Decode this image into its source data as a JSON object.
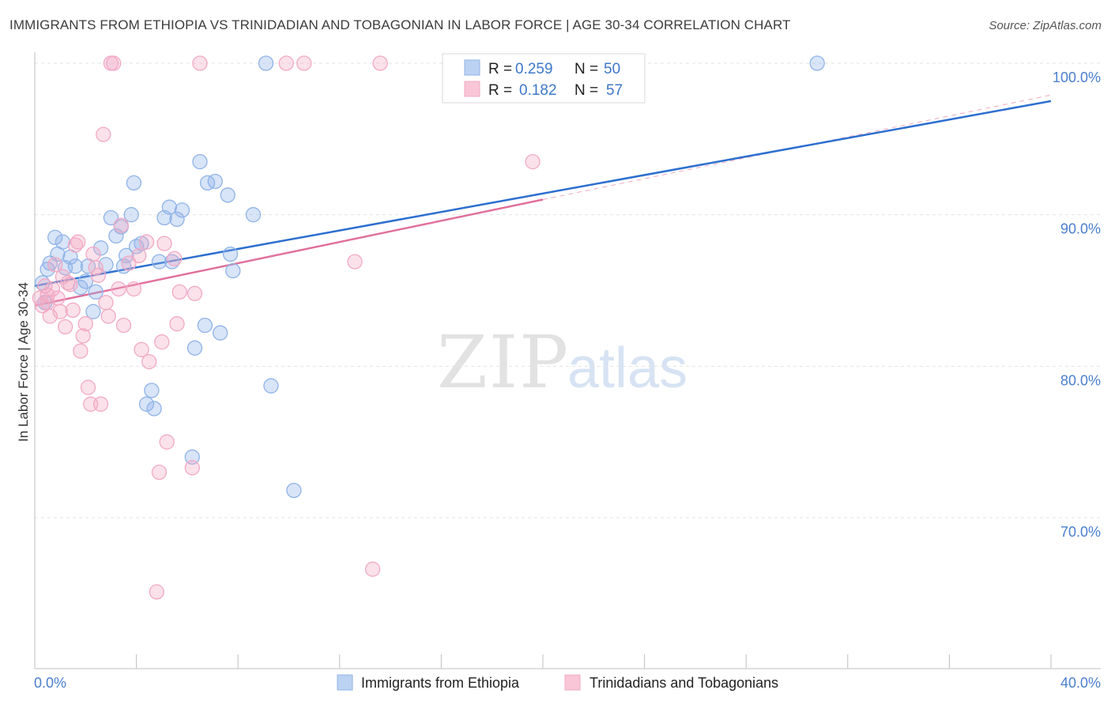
{
  "title": "IMMIGRANTS FROM ETHIOPIA VS TRINIDADIAN AND TOBAGONIAN IN LABOR FORCE | AGE 30-34 CORRELATION CHART",
  "source": "Source: ZipAtlas.com",
  "watermark": {
    "zip": "ZIP",
    "atlas": "atlas"
  },
  "legend_top": {
    "r_label": "R = ",
    "n_label": "N = ",
    "entries": [
      {
        "r": "0.259",
        "n": "50"
      },
      {
        "r": "0.182",
        "n": "57"
      }
    ]
  },
  "chart_data": {
    "type": "scatter",
    "title": "IMMIGRANTS FROM ETHIOPIA VS TRINIDADIAN AND TOBAGONIAN IN LABOR FORCE | AGE 30-34 CORRELATION CHART",
    "xlabel": "",
    "ylabel": "In Labor Force | Age 30-34",
    "xlim": [
      0,
      40
    ],
    "ylim": [
      60.5,
      102
    ],
    "x_tick_labels": [
      "0.0%",
      "40.0%"
    ],
    "y_ticks": [
      70,
      80,
      90,
      100
    ],
    "y_tick_labels": [
      "70.0%",
      "80.0%",
      "90.0%",
      "100.0%"
    ],
    "grid": true,
    "legend_placement": "bottom-center",
    "series": [
      {
        "name": "Immigrants from Ethiopia",
        "color": "#8fb3e8",
        "line_color": "#2c6fcf",
        "trend": {
          "x": [
            0,
            40
          ],
          "y": [
            85.3,
            97.5
          ]
        },
        "points": [
          [
            0.3,
            85.5
          ],
          [
            0.4,
            84.2
          ],
          [
            0.5,
            86.4
          ],
          [
            0.6,
            86.8
          ],
          [
            0.8,
            88.5
          ],
          [
            0.9,
            87.4
          ],
          [
            1.1,
            88.2
          ],
          [
            1.2,
            86.5
          ],
          [
            1.4,
            87.2
          ],
          [
            1.6,
            86.6
          ],
          [
            1.8,
            85.2
          ],
          [
            2.0,
            85.6
          ],
          [
            2.1,
            86.6
          ],
          [
            2.3,
            83.6
          ],
          [
            2.4,
            84.9
          ],
          [
            2.6,
            87.8
          ],
          [
            2.8,
            86.7
          ],
          [
            3.0,
            89.8
          ],
          [
            3.2,
            88.6
          ],
          [
            3.4,
            89.2
          ],
          [
            3.5,
            86.6
          ],
          [
            3.6,
            87.3
          ],
          [
            3.8,
            90.0
          ],
          [
            3.9,
            92.1
          ],
          [
            4.0,
            87.9
          ],
          [
            4.2,
            88.1
          ],
          [
            4.4,
            77.5
          ],
          [
            4.6,
            78.4
          ],
          [
            4.7,
            77.2
          ],
          [
            4.9,
            86.9
          ],
          [
            5.1,
            89.8
          ],
          [
            5.3,
            90.5
          ],
          [
            5.4,
            86.9
          ],
          [
            5.6,
            89.7
          ],
          [
            5.8,
            90.3
          ],
          [
            6.2,
            74.0
          ],
          [
            6.3,
            81.2
          ],
          [
            6.5,
            93.5
          ],
          [
            6.7,
            82.7
          ],
          [
            6.8,
            92.1
          ],
          [
            7.1,
            92.2
          ],
          [
            7.3,
            82.2
          ],
          [
            7.6,
            91.3
          ],
          [
            7.7,
            87.4
          ],
          [
            7.8,
            86.3
          ],
          [
            8.6,
            90.0
          ],
          [
            9.1,
            100.0
          ],
          [
            9.3,
            78.7
          ],
          [
            10.2,
            71.8
          ],
          [
            30.8,
            100.0
          ]
        ]
      },
      {
        "name": "Trinidadians and Tobagonians",
        "color": "#f2a9c4",
        "line_color": "#e0709a",
        "trend": {
          "x": [
            0,
            20
          ],
          "y": [
            84.0,
            91.0
          ],
          "dashed_extension": {
            "x": [
              20,
              40
            ],
            "y": [
              91.0,
              97.9
            ]
          }
        },
        "points": [
          [
            0.2,
            84.5
          ],
          [
            0.3,
            84.0
          ],
          [
            0.4,
            85.3
          ],
          [
            0.5,
            84.7
          ],
          [
            0.6,
            83.3
          ],
          [
            0.7,
            85.1
          ],
          [
            0.8,
            86.7
          ],
          [
            0.9,
            84.5
          ],
          [
            1.0,
            83.6
          ],
          [
            1.1,
            85.9
          ],
          [
            1.2,
            82.6
          ],
          [
            1.4,
            85.4
          ],
          [
            1.5,
            83.7
          ],
          [
            1.6,
            88.0
          ],
          [
            1.7,
            88.2
          ],
          [
            1.8,
            81.0
          ],
          [
            1.9,
            82.0
          ],
          [
            2.0,
            82.8
          ],
          [
            2.1,
            78.6
          ],
          [
            2.2,
            77.5
          ],
          [
            2.3,
            87.4
          ],
          [
            2.5,
            86.0
          ],
          [
            2.6,
            77.5
          ],
          [
            2.7,
            95.3
          ],
          [
            2.8,
            84.2
          ],
          [
            2.9,
            83.3
          ],
          [
            3.0,
            100.0
          ],
          [
            3.1,
            100.0
          ],
          [
            3.3,
            85.1
          ],
          [
            3.4,
            89.3
          ],
          [
            3.5,
            82.7
          ],
          [
            3.7,
            86.8
          ],
          [
            3.9,
            85.1
          ],
          [
            4.1,
            87.3
          ],
          [
            4.2,
            81.1
          ],
          [
            4.4,
            88.2
          ],
          [
            4.5,
            80.3
          ],
          [
            4.8,
            65.1
          ],
          [
            4.9,
            73.0
          ],
          [
            5.0,
            81.6
          ],
          [
            5.1,
            88.1
          ],
          [
            5.2,
            75.0
          ],
          [
            5.5,
            87.1
          ],
          [
            5.6,
            82.8
          ],
          [
            5.7,
            84.9
          ],
          [
            6.2,
            73.3
          ],
          [
            6.3,
            84.8
          ],
          [
            6.5,
            100.0
          ],
          [
            9.9,
            100.0
          ],
          [
            10.6,
            100.0
          ],
          [
            12.6,
            86.9
          ],
          [
            13.3,
            66.6
          ],
          [
            13.6,
            100.0
          ],
          [
            19.6,
            93.5
          ],
          [
            1.3,
            85.5
          ],
          [
            2.4,
            86.5
          ],
          [
            0.5,
            84.2
          ]
        ]
      }
    ]
  }
}
